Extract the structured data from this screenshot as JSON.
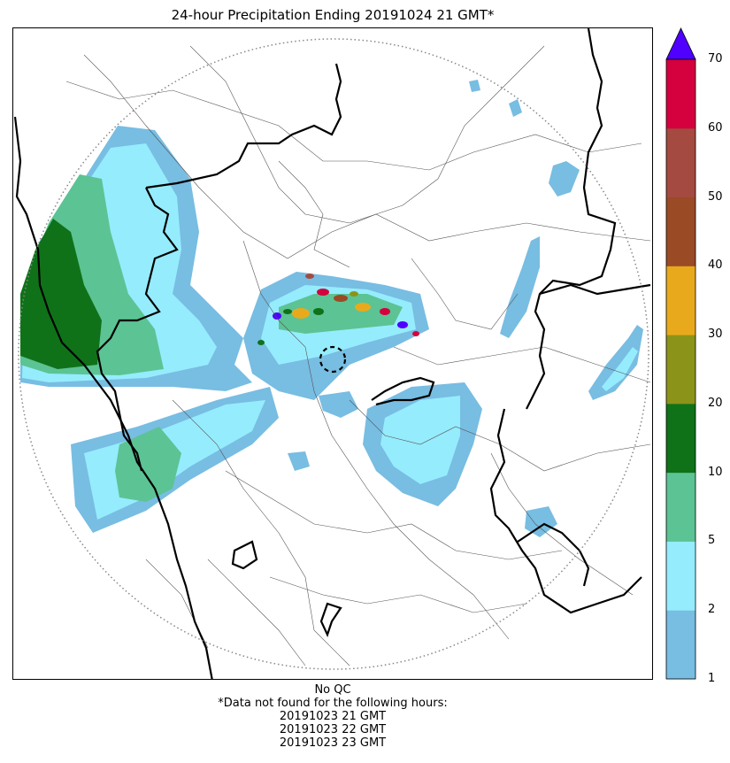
{
  "title": "24-hour Precipitation Ending 20191024 21 GMT*",
  "footer": {
    "qc": "No QC",
    "missing_note": "*Data not found for the following hours:",
    "missing_hours": [
      "20191023 21 GMT",
      "20191023 22 GMT",
      "20191023 23 GMT"
    ]
  },
  "colorbar": {
    "ticks": [
      "1",
      "2",
      "5",
      "10",
      "20",
      "30",
      "40",
      "50",
      "60",
      "70"
    ],
    "colors": [
      "#78bde2",
      "#95ecfd",
      "#5cc394",
      "#0f7219",
      "#8b9419",
      "#e8aa1c",
      "#9b4a26",
      "#a54a40",
      "#d5003e"
    ],
    "extend_color": "#5000ff"
  },
  "map": {
    "colors": {
      "light_blue": "#78bde2",
      "cyan": "#95ecfd",
      "green": "#5cc394",
      "dark_green": "#0f7219",
      "border": "#000000",
      "district": "#555555",
      "range_ring": "#888888"
    }
  }
}
